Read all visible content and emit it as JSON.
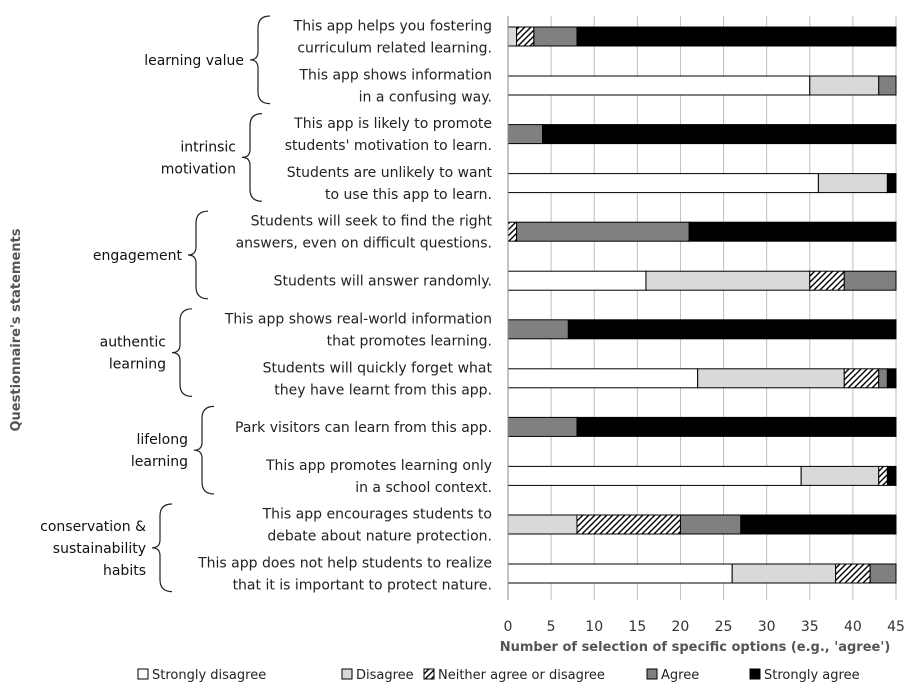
{
  "chart_data": {
    "type": "bar",
    "orientation": "horizontal",
    "stacked": true,
    "xlabel": "Number of selection of specific options (e.g., 'agree')",
    "ylabel": "Questionnaire's statements",
    "xlim": [
      0,
      45
    ],
    "xticks": [
      "0",
      "5",
      "10",
      "15",
      "20",
      "25",
      "30",
      "35",
      "40",
      "45"
    ],
    "grid": "vertical",
    "legend_position": "bottom",
    "series": [
      {
        "name": "Strongly disagree",
        "color": "#ffffff",
        "pattern": "none"
      },
      {
        "name": "Disagree",
        "color": "#d9d9d9",
        "pattern": "none"
      },
      {
        "name": "Neither agree or disagree",
        "color": "#ffffff",
        "pattern": "hatch"
      },
      {
        "name": "Agree",
        "color": "#808080",
        "pattern": "none"
      },
      {
        "name": "Strongly agree",
        "color": "#000000",
        "pattern": "none"
      }
    ],
    "groups": [
      {
        "category": [
          "learning value"
        ],
        "statements": [
          {
            "lines": [
              "This app helps you fostering",
              "curriculum related learning."
            ],
            "values": [
              0,
              1,
              2,
              5,
              37
            ]
          },
          {
            "lines": [
              "This app shows information",
              "in a confusing way."
            ],
            "values": [
              35,
              8,
              0,
              2,
              0
            ]
          }
        ]
      },
      {
        "category": [
          "intrinsic",
          "motivation"
        ],
        "statements": [
          {
            "lines": [
              "This app is likely to promote",
              "students' motivation to learn."
            ],
            "values": [
              0,
              0,
              0,
              4,
              41
            ]
          },
          {
            "lines": [
              "Students are unlikely to want",
              "to use this app to learn."
            ],
            "values": [
              36,
              8,
              0,
              0,
              1
            ]
          }
        ]
      },
      {
        "category": [
          "engagement"
        ],
        "statements": [
          {
            "lines": [
              "Students will seek to find the right",
              "answers, even on difficult questions."
            ],
            "values": [
              0,
              0,
              1,
              20,
              24
            ]
          },
          {
            "lines": [
              "Students will answer randomly."
            ],
            "values": [
              16,
              19,
              4,
              6,
              0
            ]
          }
        ]
      },
      {
        "category": [
          "authentic",
          "learning"
        ],
        "statements": [
          {
            "lines": [
              "This app shows real-world information",
              "that promotes learning."
            ],
            "values": [
              0,
              0,
              0,
              7,
              38
            ]
          },
          {
            "lines": [
              "Students will quickly forget what",
              "they have learnt from this app."
            ],
            "values": [
              22,
              17,
              4,
              1,
              1
            ]
          }
        ]
      },
      {
        "category": [
          "lifelong",
          "learning"
        ],
        "statements": [
          {
            "lines": [
              "Park visitors can learn from this app."
            ],
            "values": [
              0,
              0,
              0,
              8,
              37
            ]
          },
          {
            "lines": [
              "This app promotes learning only",
              "in a school context."
            ],
            "values": [
              34,
              9,
              1,
              0,
              1
            ]
          }
        ]
      },
      {
        "category": [
          "conservation &",
          "sustainability",
          "habits"
        ],
        "statements": [
          {
            "lines": [
              "This app encourages students to",
              "debate about nature protection."
            ],
            "values": [
              0,
              8,
              12,
              7,
              18
            ]
          },
          {
            "lines": [
              "This app does not help students to realize",
              "that it is important to protect nature."
            ],
            "values": [
              26,
              12,
              4,
              3,
              0
            ]
          }
        ]
      }
    ]
  }
}
